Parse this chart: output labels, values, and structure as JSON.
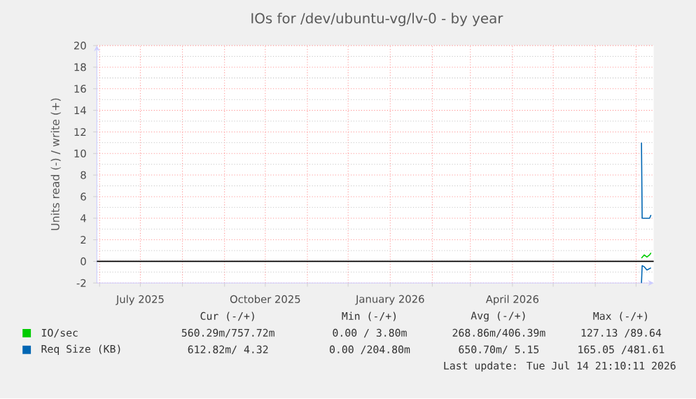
{
  "chart_data": {
    "type": "line",
    "title": "IOs for /dev/ubuntu-vg/lv-0 - by year",
    "ylabel": "Units read (-) / write (+)",
    "xlim": [
      "2025-05-30",
      "2026-07-14"
    ],
    "xticks": [
      {
        "value": "2025-06-01",
        "label": null
      },
      {
        "value": "2025-07-01",
        "label": "July 2025"
      },
      {
        "value": "2025-08-01",
        "label": null
      },
      {
        "value": "2025-09-01",
        "label": null
      },
      {
        "value": "2025-10-01",
        "label": "October 2025"
      },
      {
        "value": "2025-11-01",
        "label": null
      },
      {
        "value": "2025-12-01",
        "label": null
      },
      {
        "value": "2026-01-01",
        "label": "January 2026"
      },
      {
        "value": "2026-02-01",
        "label": null
      },
      {
        "value": "2026-03-01",
        "label": null
      },
      {
        "value": "2026-04-01",
        "label": "April 2026"
      },
      {
        "value": "2026-05-01",
        "label": null
      },
      {
        "value": "2026-06-01",
        "label": null
      },
      {
        "value": "2026-07-01",
        "label": null
      }
    ],
    "ylim": [
      -2,
      20
    ],
    "yticks": [
      -2,
      0,
      2,
      4,
      6,
      8,
      10,
      12,
      14,
      16,
      18,
      20
    ],
    "grid": true,
    "legend": "bottom",
    "ref_lines": [
      {
        "axis": "y",
        "value": 0,
        "color": "#000000"
      }
    ],
    "series": [
      {
        "name": "IO/sec",
        "color": "#00cc00",
        "x": [
          "2026-07-05",
          "2026-07-07",
          "2026-07-09",
          "2026-07-11",
          "2026-07-12"
        ],
        "values": [
          0.3,
          0.6,
          0.4,
          0.6,
          0.8
        ]
      },
      {
        "name": "Req Size (KB)",
        "color": "#0066b3",
        "x": [
          "2026-07-05",
          "2026-07-05T12:00",
          "2026-07-11",
          "2026-07-12"
        ],
        "values": [
          11,
          4,
          4,
          4.3
        ]
      },
      {
        "color": "#0066b3",
        "x": [
          "2026-07-05",
          "2026-07-05T12:00",
          "2026-07-07",
          "2026-07-09",
          "2026-07-12"
        ],
        "values": [
          -2,
          -0.4,
          -0.5,
          -0.8,
          -0.6
        ]
      }
    ],
    "annotations": [
      "Cur (-/+)",
      "Min (-/+)",
      "Avg (-/+)",
      "Max (-/+)",
      "560.29m/757.72m",
      "0.00 / 3.80m",
      "268.86m/406.39m",
      "127.13 /89.64",
      "612.82m/ 4.32",
      "0.00 /204.80m",
      "650.70m/ 5.15",
      "165.05 /481.61",
      "Last update: Tue Jul 14 21:10:11 2026"
    ]
  }
}
